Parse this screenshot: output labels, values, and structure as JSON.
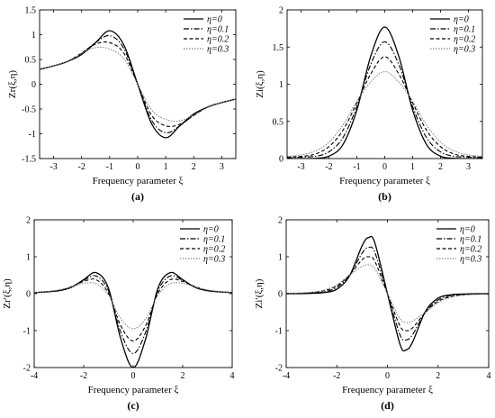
{
  "figure": {
    "panels": [
      {
        "id": "a",
        "caption": "(a)"
      },
      {
        "id": "b",
        "caption": "(b)"
      },
      {
        "id": "c",
        "caption": "(c)"
      },
      {
        "id": "d",
        "caption": "(d)"
      }
    ]
  },
  "chart_data": [
    {
      "type": "line",
      "panel": "(a)",
      "xlabel": "Frequency parameter ξ",
      "ylabel": "Zr(ξ,η)",
      "xlim": [
        -3.5,
        3.5
      ],
      "ylim": [
        -1.5,
        1.5
      ],
      "xticks": [
        -3,
        -2,
        -1,
        0,
        1,
        2,
        3
      ],
      "yticks": [
        -1.5,
        -1,
        -0.5,
        0,
        0.5,
        1,
        1.5
      ],
      "ytick_labels": [
        "-1.5",
        "-1",
        "-0.5",
        "0",
        "0.5",
        "1",
        "1.5"
      ],
      "legend": "top-right",
      "grid": false,
      "x": [
        -3.5,
        -3.0,
        -2.5,
        -2.0,
        -1.5,
        -1.0,
        -0.5,
        0.0,
        0.5,
        1.0,
        1.5,
        2.0,
        2.5,
        3.0,
        3.5
      ],
      "series": [
        {
          "name": "η=0",
          "style": "solid",
          "values": [
            0.3,
            0.37,
            0.46,
            0.6,
            0.84,
            1.08,
            0.8,
            0.0,
            -0.8,
            -1.08,
            -0.84,
            -0.6,
            -0.46,
            -0.37,
            -0.3
          ]
        },
        {
          "name": "η=0.1",
          "style": "dashdot",
          "values": [
            0.3,
            0.37,
            0.46,
            0.62,
            0.84,
            0.98,
            0.73,
            0.0,
            -0.73,
            -0.98,
            -0.84,
            -0.62,
            -0.46,
            -0.37,
            -0.3
          ]
        },
        {
          "name": "η=0.2",
          "style": "dashed",
          "values": [
            0.3,
            0.37,
            0.46,
            0.63,
            0.81,
            0.84,
            0.63,
            0.0,
            -0.63,
            -0.84,
            -0.81,
            -0.63,
            -0.46,
            -0.37,
            -0.3
          ]
        },
        {
          "name": "η=0.3",
          "style": "dotted",
          "values": [
            0.3,
            0.37,
            0.47,
            0.62,
            0.74,
            0.71,
            0.52,
            0.0,
            -0.52,
            -0.71,
            -0.74,
            -0.62,
            -0.47,
            -0.37,
            -0.3
          ]
        }
      ]
    },
    {
      "type": "line",
      "panel": "(b)",
      "xlabel": "Frequency parameter ξ",
      "ylabel": "Zi(ξ,η)",
      "xlim": [
        -3.5,
        3.5
      ],
      "ylim": [
        0,
        2
      ],
      "xticks": [
        -3,
        -2,
        -1,
        0,
        1,
        2,
        3
      ],
      "yticks": [
        0,
        0.5,
        1,
        1.5,
        2
      ],
      "ytick_labels": [
        "0",
        "0.5",
        "1",
        "1.5",
        "2"
      ],
      "legend": "top-right",
      "grid": false,
      "x": [
        -3.5,
        -3.0,
        -2.5,
        -2.0,
        -1.5,
        -1.0,
        -0.5,
        0.0,
        0.5,
        1.0,
        1.5,
        2.0,
        2.5,
        3.0,
        3.5
      ],
      "series": [
        {
          "name": "η=0",
          "style": "solid",
          "values": [
            0.0,
            0.0,
            0.003,
            0.032,
            0.187,
            0.652,
            1.38,
            1.77,
            1.38,
            0.652,
            0.187,
            0.032,
            0.003,
            0.0,
            0.0
          ]
        },
        {
          "name": "η=0.1",
          "style": "dashdot",
          "values": [
            0.01,
            0.02,
            0.03,
            0.09,
            0.28,
            0.7,
            1.27,
            1.57,
            1.27,
            0.7,
            0.28,
            0.09,
            0.03,
            0.02,
            0.01
          ]
        },
        {
          "name": "η=0.2",
          "style": "dashed",
          "values": [
            0.02,
            0.03,
            0.06,
            0.16,
            0.38,
            0.75,
            1.14,
            1.37,
            1.14,
            0.75,
            0.38,
            0.16,
            0.06,
            0.03,
            0.02
          ]
        },
        {
          "name": "η=0.3",
          "style": "dotted",
          "values": [
            0.03,
            0.05,
            0.1,
            0.22,
            0.45,
            0.77,
            1.03,
            1.17,
            1.03,
            0.77,
            0.45,
            0.22,
            0.1,
            0.05,
            0.03
          ]
        }
      ]
    },
    {
      "type": "line",
      "panel": "(c)",
      "xlabel": "Frequency parameter ξ",
      "ylabel": "Zr′(ξ,η)",
      "xlim": [
        -4,
        4
      ],
      "ylim": [
        -2,
        2
      ],
      "xticks": [
        -4,
        -2,
        0,
        2,
        4
      ],
      "yticks": [
        -2,
        -1,
        0,
        1,
        2
      ],
      "ytick_labels": [
        "-2",
        "-1",
        "0",
        "1",
        "2"
      ],
      "legend": "top-right",
      "grid": false,
      "x": [
        -4.0,
        -3.5,
        -3.0,
        -2.5,
        -2.0,
        -1.5,
        -1.0,
        -0.5,
        0.0,
        0.5,
        1.0,
        1.5,
        2.0,
        2.5,
        3.0,
        3.5,
        4.0
      ],
      "series": [
        {
          "name": "η=0",
          "style": "solid",
          "values": [
            0.03,
            0.05,
            0.08,
            0.17,
            0.38,
            0.57,
            0.15,
            -1.23,
            -2.0,
            -1.23,
            0.15,
            0.57,
            0.38,
            0.17,
            0.08,
            0.05,
            0.03
          ]
        },
        {
          "name": "η=0.1",
          "style": "dashdot",
          "values": [
            0.03,
            0.05,
            0.09,
            0.18,
            0.36,
            0.48,
            0.08,
            -1.05,
            -1.62,
            -1.05,
            0.08,
            0.48,
            0.36,
            0.18,
            0.09,
            0.05,
            0.03
          ]
        },
        {
          "name": "η=0.2",
          "style": "dashed",
          "values": [
            0.03,
            0.05,
            0.09,
            0.19,
            0.33,
            0.38,
            0.01,
            -0.87,
            -1.28,
            -0.87,
            0.01,
            0.38,
            0.33,
            0.19,
            0.09,
            0.05,
            0.03
          ]
        },
        {
          "name": "η=0.3",
          "style": "dotted",
          "values": [
            0.03,
            0.06,
            0.1,
            0.18,
            0.28,
            0.27,
            -0.04,
            -0.68,
            -0.95,
            -0.68,
            -0.04,
            0.27,
            0.28,
            0.18,
            0.1,
            0.06,
            0.03
          ]
        }
      ]
    },
    {
      "type": "line",
      "panel": "(d)",
      "xlabel": "Frequency parameter ξ",
      "ylabel": "Zi′(ξ,η)",
      "xlim": [
        -4,
        4
      ],
      "ylim": [
        -2,
        2
      ],
      "xticks": [
        -4,
        -2,
        0,
        2,
        4
      ],
      "yticks": [
        -2,
        -1,
        0,
        1,
        2
      ],
      "ytick_labels": [
        "-2",
        "-1",
        "0",
        "1",
        "2"
      ],
      "legend": "top-right",
      "grid": false,
      "x": [
        -4.0,
        -3.5,
        -3.0,
        -2.5,
        -2.0,
        -1.5,
        -1.0,
        -0.75,
        -0.5,
        0.0,
        0.5,
        0.75,
        1.0,
        1.5,
        2.0,
        2.5,
        3.0,
        3.5,
        4.0
      ],
      "series": [
        {
          "name": "η=0",
          "style": "solid",
          "values": [
            0.0,
            0.0,
            0.01,
            0.03,
            0.12,
            0.48,
            1.3,
            1.52,
            1.38,
            0.0,
            -1.38,
            -1.52,
            -1.3,
            -0.48,
            -0.12,
            -0.03,
            -0.01,
            0.0,
            0.0
          ]
        },
        {
          "name": "η=0.1",
          "style": "dashdot",
          "values": [
            0.01,
            0.01,
            0.02,
            0.05,
            0.17,
            0.5,
            1.1,
            1.25,
            1.12,
            0.0,
            -1.12,
            -1.25,
            -1.1,
            -0.5,
            -0.17,
            -0.05,
            -0.02,
            -0.01,
            -0.01
          ]
        },
        {
          "name": "η=0.2",
          "style": "dashed",
          "values": [
            0.01,
            0.01,
            0.03,
            0.08,
            0.21,
            0.51,
            0.92,
            1.0,
            0.88,
            0.0,
            -0.88,
            -1.0,
            -0.92,
            -0.51,
            -0.21,
            -0.08,
            -0.03,
            -0.01,
            -0.01
          ]
        },
        {
          "name": "η=0.3",
          "style": "dotted",
          "values": [
            0.01,
            0.02,
            0.04,
            0.1,
            0.24,
            0.5,
            0.74,
            0.78,
            0.68,
            0.0,
            -0.68,
            -0.78,
            -0.74,
            -0.5,
            -0.24,
            -0.1,
            -0.04,
            -0.02,
            -0.01
          ]
        }
      ]
    }
  ]
}
